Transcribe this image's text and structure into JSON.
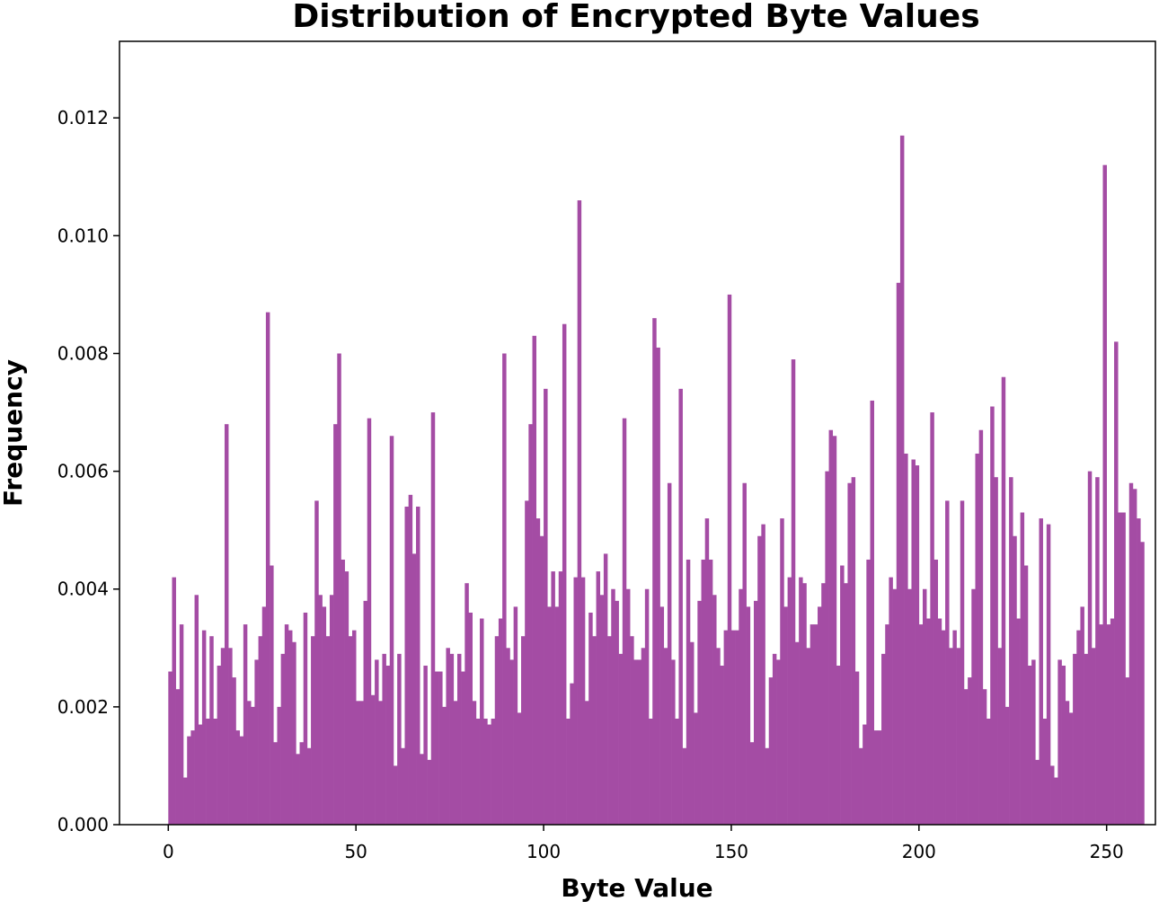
{
  "chart_data": {
    "type": "bar",
    "title": "Distribution of Encrypted Byte Values",
    "xlabel": "Byte Value",
    "ylabel": "Frequency",
    "xlim": [
      -13,
      263
    ],
    "ylim": [
      0,
      0.0133
    ],
    "xticks": [
      0,
      50,
      100,
      150,
      200,
      250
    ],
    "xtick_labels": [
      "0",
      "50",
      "100",
      "150",
      "200",
      "250"
    ],
    "yticks": [
      0,
      0.002,
      0.004,
      0.006,
      0.008,
      0.01,
      0.012
    ],
    "ytick_labels": [
      "0.000",
      "0.002",
      "0.004",
      "0.006",
      "0.008",
      "0.010",
      "0.012"
    ],
    "grid": false,
    "legend": "none",
    "bar_color": "#a44ca4",
    "bin_width": 1,
    "x_start": 0,
    "values": [
      0.0026,
      0.0042,
      0.0023,
      0.0034,
      0.0008,
      0.0015,
      0.0016,
      0.0039,
      0.0017,
      0.0033,
      0.0018,
      0.0032,
      0.0018,
      0.0027,
      0.003,
      0.0068,
      0.003,
      0.0025,
      0.0016,
      0.0015,
      0.0034,
      0.0021,
      0.002,
      0.0028,
      0.0032,
      0.0037,
      0.0087,
      0.0044,
      0.0014,
      0.002,
      0.0029,
      0.0034,
      0.0033,
      0.0031,
      0.0012,
      0.0014,
      0.0036,
      0.0013,
      0.0032,
      0.0055,
      0.0039,
      0.0037,
      0.0032,
      0.0039,
      0.0068,
      0.008,
      0.0045,
      0.0043,
      0.0032,
      0.0033,
      0.0021,
      0.0021,
      0.0038,
      0.0069,
      0.0022,
      0.0028,
      0.0021,
      0.0029,
      0.0027,
      0.0066,
      0.001,
      0.0029,
      0.0013,
      0.0054,
      0.0056,
      0.0046,
      0.0054,
      0.0012,
      0.0027,
      0.0011,
      0.007,
      0.0026,
      0.0026,
      0.002,
      0.003,
      0.0029,
      0.0021,
      0.0029,
      0.0026,
      0.0041,
      0.0036,
      0.0021,
      0.0018,
      0.0035,
      0.0018,
      0.0017,
      0.0018,
      0.0032,
      0.0035,
      0.008,
      0.003,
      0.0028,
      0.0037,
      0.0019,
      0.0032,
      0.0055,
      0.0068,
      0.0083,
      0.0052,
      0.0049,
      0.0074,
      0.0037,
      0.0043,
      0.0037,
      0.0043,
      0.0085,
      0.0018,
      0.0024,
      0.0042,
      0.0106,
      0.0042,
      0.0021,
      0.0036,
      0.0032,
      0.0043,
      0.0039,
      0.0046,
      0.0032,
      0.004,
      0.0038,
      0.0029,
      0.0069,
      0.004,
      0.0032,
      0.0028,
      0.0028,
      0.003,
      0.004,
      0.0018,
      0.0086,
      0.0081,
      0.0037,
      0.003,
      0.0058,
      0.0028,
      0.0018,
      0.0074,
      0.0013,
      0.0045,
      0.0031,
      0.0019,
      0.0038,
      0.0045,
      0.0052,
      0.0045,
      0.0039,
      0.003,
      0.0027,
      0.0033,
      0.009,
      0.0033,
      0.0033,
      0.004,
      0.0058,
      0.0037,
      0.0014,
      0.0038,
      0.0049,
      0.0051,
      0.0013,
      0.0025,
      0.0029,
      0.0028,
      0.0052,
      0.0037,
      0.0042,
      0.0079,
      0.0031,
      0.0042,
      0.0041,
      0.003,
      0.0034,
      0.0034,
      0.0037,
      0.0041,
      0.006,
      0.0067,
      0.0066,
      0.0027,
      0.0044,
      0.0041,
      0.0058,
      0.0059,
      0.0026,
      0.0013,
      0.0017,
      0.0045,
      0.0072,
      0.0016,
      0.0016,
      0.0029,
      0.0034,
      0.0042,
      0.004,
      0.0092,
      0.0117,
      0.0063,
      0.004,
      0.0062,
      0.0061,
      0.0034,
      0.004,
      0.0035,
      0.007,
      0.0045,
      0.0035,
      0.0033,
      0.0055,
      0.003,
      0.0033,
      0.003,
      0.0055,
      0.0023,
      0.0025,
      0.004,
      0.0063,
      0.0067,
      0.0023,
      0.0018,
      0.0071,
      0.0059,
      0.003,
      0.0076,
      0.002,
      0.0059,
      0.0049,
      0.0035,
      0.0053,
      0.0044,
      0.0027,
      0.0028,
      0.0011,
      0.0052,
      0.0018,
      0.0051,
      0.001,
      0.0008,
      0.0028,
      0.0027,
      0.0021,
      0.0019,
      0.0029,
      0.0033,
      0.0037,
      0.0029,
      0.006,
      0.003,
      0.0059,
      0.0034,
      0.0112,
      0.0034,
      0.0035,
      0.0082,
      0.0053,
      0.0053,
      0.0025,
      0.0058,
      0.0057,
      0.0052,
      0.0048
    ]
  }
}
